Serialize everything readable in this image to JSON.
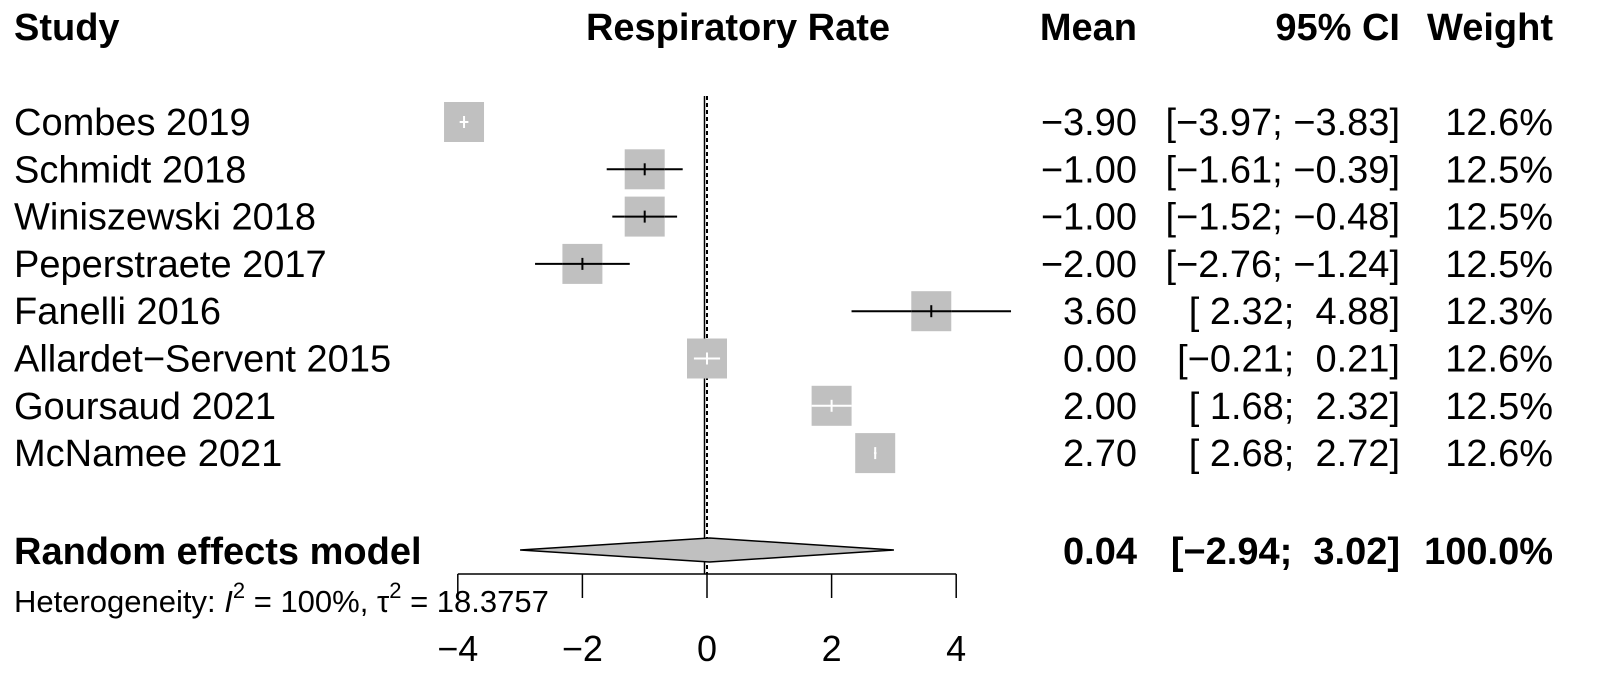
{
  "headers": {
    "study": "Study",
    "effect": "Respiratory Rate",
    "mean": "Mean",
    "ci": "95% CI",
    "weight": "Weight"
  },
  "chart_data": {
    "type": "forest",
    "xlabel": "",
    "xlim": [
      -4,
      4
    ],
    "ticks": [
      -4,
      -2,
      0,
      2,
      4
    ],
    "tick_labels": [
      "−4",
      "−2",
      "0",
      "2",
      "4"
    ],
    "reference_line": 0,
    "studies": [
      {
        "name": "Combes 2019",
        "mean": -3.9,
        "lower": -3.97,
        "upper": -3.83,
        "weight": 12.6,
        "mean_text": "−3.90",
        "ci_text": "[−3.97; −3.83]",
        "weight_text": "12.6%"
      },
      {
        "name": "Schmidt 2018",
        "mean": -1.0,
        "lower": -1.61,
        "upper": -0.39,
        "weight": 12.5,
        "mean_text": "−1.00",
        "ci_text": "[−1.61; −0.39]",
        "weight_text": "12.5%"
      },
      {
        "name": "Winiszewski 2018",
        "mean": -1.0,
        "lower": -1.52,
        "upper": -0.48,
        "weight": 12.5,
        "mean_text": "−1.00",
        "ci_text": "[−1.52; −0.48]",
        "weight_text": "12.5%"
      },
      {
        "name": "Peperstraete 2017",
        "mean": -2.0,
        "lower": -2.76,
        "upper": -1.24,
        "weight": 12.5,
        "mean_text": "−2.00",
        "ci_text": "[−2.76; −1.24]",
        "weight_text": "12.5%"
      },
      {
        "name": "Fanelli 2016",
        "mean": 3.6,
        "lower": 2.32,
        "upper": 4.88,
        "weight": 12.3,
        "mean_text": "3.60",
        "ci_text": "[ 2.32;  4.88]",
        "weight_text": "12.3%"
      },
      {
        "name": "Allardet−Servent 2015",
        "mean": 0.0,
        "lower": -0.21,
        "upper": 0.21,
        "weight": 12.6,
        "mean_text": "0.00",
        "ci_text": "[−0.21;  0.21]",
        "weight_text": "12.6%"
      },
      {
        "name": "Goursaud 2021",
        "mean": 2.0,
        "lower": 1.68,
        "upper": 2.32,
        "weight": 12.5,
        "mean_text": "2.00",
        "ci_text": "[ 1.68;  2.32]",
        "weight_text": "12.5%"
      },
      {
        "name": "McNamee 2021",
        "mean": 2.7,
        "lower": 2.68,
        "upper": 2.72,
        "weight": 12.6,
        "mean_text": "2.70",
        "ci_text": "[ 2.68;  2.72]",
        "weight_text": "12.6%"
      }
    ],
    "summary": {
      "name": "Random effects model",
      "mean": 0.04,
      "lower": -2.94,
      "upper": 3.02,
      "pi_lower": -3.0,
      "pi_upper": 3.0,
      "mean_text": "0.04",
      "ci_text": "[−2.94;  3.02]",
      "weight_text": "100.0%"
    },
    "heterogeneity": {
      "prefix": "Heterogeneity: ",
      "i2_symbol": "I",
      "i2_value": " = 100%, ",
      "tau_symbol": "τ",
      "tau_value": " = 18.3757",
      "superscript": "2"
    },
    "colors": {
      "box": "#c0c0c0",
      "diamond": "#c0c0c0",
      "line": "#000000",
      "inner_line": "#ffffff"
    }
  }
}
